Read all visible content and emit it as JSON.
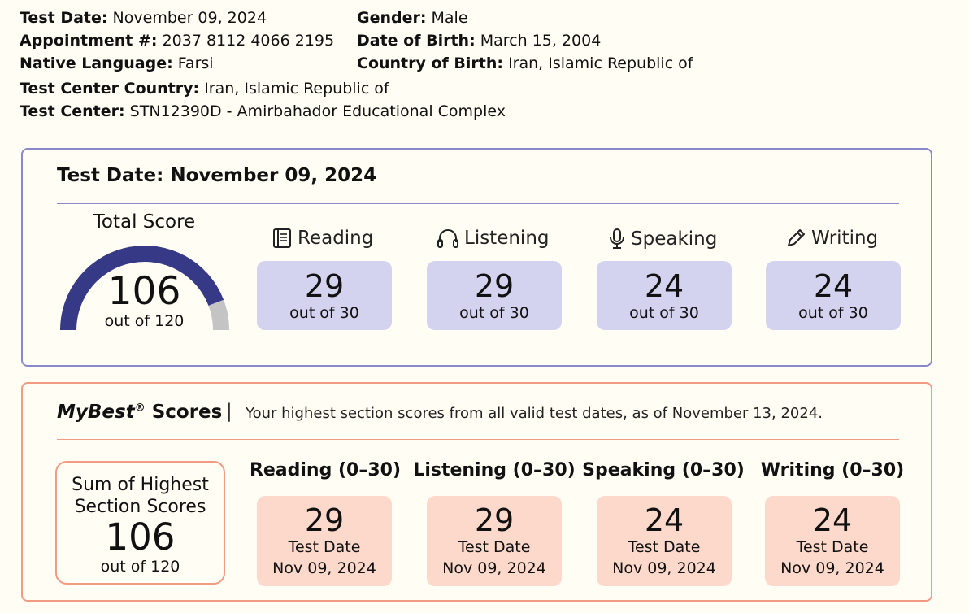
{
  "candidate": {
    "test_date_label": "Test Date:",
    "test_date": "November 09, 2024",
    "appointment_label": "Appointment #:",
    "appointment": "2037 8112 4066 2195",
    "native_language_label": "Native Language:",
    "native_language": "Farsi",
    "gender_label": "Gender:",
    "gender": "Male",
    "dob_label": "Date of Birth:",
    "dob": "March 15, 2004",
    "country_of_birth_label": "Country of Birth:",
    "country_of_birth": "Iran, Islamic Republic of",
    "test_center_country_label": "Test Center Country:",
    "test_center_country": "Iran, Islamic Republic of",
    "test_center_label": "Test Center:",
    "test_center": "STN12390D - Amirbahador Educational Complex"
  },
  "test_scores": {
    "title": "Test Date: November 09, 2024",
    "total_label": "Total Score",
    "total_value": "106",
    "total_out_of": "out of 120",
    "total_fraction": 0.8833,
    "sections": [
      {
        "label": "Reading",
        "icon": "book-icon",
        "score": "29",
        "out_of": "out of 30"
      },
      {
        "label": "Listening",
        "icon": "headphones-icon",
        "score": "29",
        "out_of": "out of 30"
      },
      {
        "label": "Speaking",
        "icon": "microphone-icon",
        "score": "24",
        "out_of": "out of 30"
      },
      {
        "label": "Writing",
        "icon": "pencil-icon",
        "score": "24",
        "out_of": "out of 30"
      }
    ],
    "colors": {
      "accent": "#8a88cc",
      "gauge_fill": "#353986",
      "gauge_rest": "#c4c4c4",
      "box": "#d4d3ef"
    }
  },
  "mybest": {
    "title_brand": "MyBest",
    "title_reg": "®",
    "title_rest": " Scores",
    "separator": "|",
    "description": "Your highest section scores from all valid test dates, as of November 13, 2024.",
    "sum_label_line1": "Sum of Highest",
    "sum_label_line2": "Section Scores",
    "sum_value": "106",
    "sum_out_of": "out of 120",
    "sections": [
      {
        "label": "Reading (0–30)",
        "score": "29",
        "date_label": "Test Date",
        "date": "Nov 09, 2024"
      },
      {
        "label": "Listening (0–30)",
        "score": "29",
        "date_label": "Test Date",
        "date": "Nov 09, 2024"
      },
      {
        "label": "Speaking (0–30)",
        "score": "24",
        "date_label": "Test Date",
        "date": "Nov 09, 2024"
      },
      {
        "label": "Writing (0–30)",
        "score": "24",
        "date_label": "Test Date",
        "date": "Nov 09, 2024"
      }
    ],
    "colors": {
      "accent": "#f29a82",
      "box": "#fdd9cc"
    }
  }
}
